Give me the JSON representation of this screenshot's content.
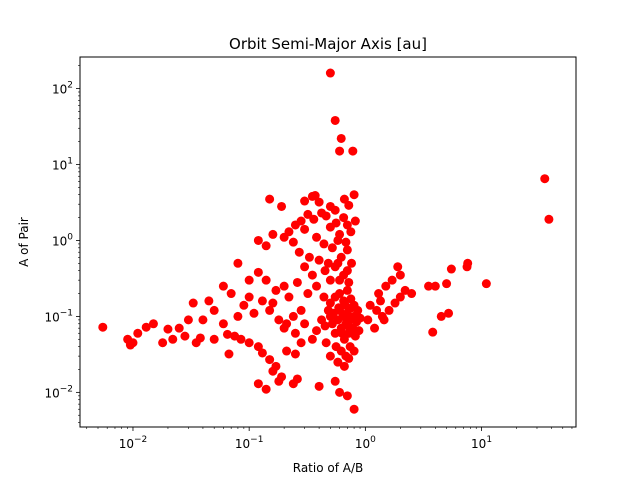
{
  "chart_data": {
    "type": "scatter",
    "title": "Orbit Semi-Major Axis [au]",
    "xlabel": "Ratio of A/B",
    "ylabel": "A of Pair",
    "xscale": "log",
    "yscale": "log",
    "xlim": [
      0.0035,
      65
    ],
    "ylim": [
      0.0035,
      260
    ],
    "grid": false,
    "marker_color": "#ff0000",
    "xticks": [
      {
        "value": 0.01,
        "base": "10",
        "exp": "−2"
      },
      {
        "value": 0.1,
        "base": "10",
        "exp": "−1"
      },
      {
        "value": 1,
        "base": "10",
        "exp": "0"
      },
      {
        "value": 10,
        "base": "10",
        "exp": "1"
      }
    ],
    "yticks": [
      {
        "value": 0.01,
        "base": "10",
        "exp": "−2"
      },
      {
        "value": 0.1,
        "base": "10",
        "exp": "−1"
      },
      {
        "value": 1,
        "base": "10",
        "exp": "0"
      },
      {
        "value": 10,
        "base": "10",
        "exp": "1"
      },
      {
        "value": 100,
        "base": "10",
        "exp": "2"
      }
    ],
    "series": [
      {
        "points": [
          [
            0.5,
            160
          ],
          [
            0.55,
            38
          ],
          [
            0.62,
            22
          ],
          [
            0.6,
            15
          ],
          [
            0.78,
            15
          ],
          [
            35,
            6.5
          ],
          [
            38,
            1.9
          ],
          [
            0.15,
            3.5
          ],
          [
            0.19,
            2.8
          ],
          [
            0.3,
            3.3
          ],
          [
            0.35,
            3.8
          ],
          [
            0.37,
            3.9
          ],
          [
            0.4,
            3.2
          ],
          [
            0.5,
            2.8
          ],
          [
            0.55,
            2.5
          ],
          [
            0.8,
            4.0
          ],
          [
            0.66,
            3.5
          ],
          [
            0.72,
            2.9
          ],
          [
            0.12,
            1.0
          ],
          [
            0.14,
            0.85
          ],
          [
            0.16,
            1.2
          ],
          [
            0.2,
            1.1
          ],
          [
            0.22,
            1.3
          ],
          [
            0.25,
            1.6
          ],
          [
            0.28,
            1.8
          ],
          [
            0.3,
            1.4
          ],
          [
            0.32,
            2.2
          ],
          [
            0.36,
            1.9
          ],
          [
            0.42,
            2.3
          ],
          [
            0.46,
            2.1
          ],
          [
            0.5,
            1.5
          ],
          [
            0.56,
            1.7
          ],
          [
            0.6,
            1.2
          ],
          [
            0.65,
            2.0
          ],
          [
            0.7,
            1.6
          ],
          [
            0.75,
            1.3
          ],
          [
            0.82,
            1.8
          ],
          [
            0.38,
            1.1
          ],
          [
            0.44,
            0.9
          ],
          [
            0.52,
            0.8
          ],
          [
            0.58,
            1.0
          ],
          [
            0.68,
            0.95
          ],
          [
            0.24,
            0.95
          ],
          [
            0.27,
            0.7
          ],
          [
            0.33,
            0.6
          ],
          [
            0.4,
            0.55
          ],
          [
            0.48,
            0.5
          ],
          [
            0.55,
            0.45
          ],
          [
            0.62,
            0.6
          ],
          [
            0.7,
            0.75
          ],
          [
            0.76,
            0.5
          ],
          [
            0.45,
            0.4
          ],
          [
            0.35,
            0.35
          ],
          [
            0.3,
            0.45
          ],
          [
            0.08,
            0.5
          ],
          [
            0.1,
            0.3
          ],
          [
            0.12,
            0.38
          ],
          [
            0.14,
            0.3
          ],
          [
            0.17,
            0.22
          ],
          [
            0.2,
            0.25
          ],
          [
            0.22,
            0.18
          ],
          [
            0.26,
            0.28
          ],
          [
            0.32,
            0.2
          ],
          [
            0.38,
            0.25
          ],
          [
            0.44,
            0.18
          ],
          [
            0.5,
            0.3
          ],
          [
            0.06,
            0.25
          ],
          [
            0.07,
            0.2
          ],
          [
            0.09,
            0.14
          ],
          [
            0.1,
            0.18
          ],
          [
            0.13,
            0.16
          ],
          [
            0.16,
            0.15
          ],
          [
            0.05,
            0.12
          ],
          [
            0.06,
            0.08
          ],
          [
            0.08,
            0.1
          ],
          [
            0.11,
            0.11
          ],
          [
            0.15,
            0.12
          ],
          [
            0.18,
            0.09
          ],
          [
            0.21,
            0.08
          ],
          [
            0.24,
            0.1
          ],
          [
            0.28,
            0.12
          ],
          [
            0.033,
            0.15
          ],
          [
            0.04,
            0.09
          ],
          [
            0.045,
            0.16
          ],
          [
            0.03,
            0.09
          ],
          [
            0.025,
            0.07
          ],
          [
            0.02,
            0.068
          ],
          [
            0.015,
            0.08
          ],
          [
            0.013,
            0.072
          ],
          [
            0.011,
            0.06
          ],
          [
            0.009,
            0.05
          ],
          [
            0.01,
            0.045
          ],
          [
            0.0055,
            0.072
          ],
          [
            0.0095,
            0.042
          ],
          [
            0.018,
            0.045
          ],
          [
            0.022,
            0.05
          ],
          [
            0.028,
            0.055
          ],
          [
            0.035,
            0.045
          ],
          [
            0.038,
            0.052
          ],
          [
            0.05,
            0.05
          ],
          [
            0.065,
            0.058
          ],
          [
            0.075,
            0.055
          ],
          [
            0.085,
            0.05
          ],
          [
            0.1,
            0.045
          ],
          [
            0.12,
            0.04
          ],
          [
            0.067,
            0.032
          ],
          [
            0.13,
            0.033
          ],
          [
            0.15,
            0.027
          ],
          [
            0.17,
            0.022
          ],
          [
            0.16,
            0.019
          ],
          [
            0.19,
            0.016
          ],
          [
            0.21,
            0.035
          ],
          [
            0.25,
            0.032
          ],
          [
            0.28,
            0.045
          ],
          [
            0.12,
            0.013
          ],
          [
            0.14,
            0.011
          ],
          [
            0.18,
            0.014
          ],
          [
            0.24,
            0.013
          ],
          [
            0.26,
            0.015
          ],
          [
            0.7,
            0.009
          ],
          [
            0.8,
            0.006
          ],
          [
            0.6,
            0.01
          ],
          [
            0.55,
            0.014
          ],
          [
            0.4,
            0.012
          ],
          [
            0.2,
            0.07
          ],
          [
            0.25,
            0.06
          ],
          [
            0.3,
            0.08
          ],
          [
            0.35,
            0.05
          ],
          [
            0.38,
            0.065
          ],
          [
            0.42,
            0.09
          ],
          [
            0.45,
            0.075
          ],
          [
            0.48,
            0.12
          ],
          [
            0.5,
            0.1
          ],
          [
            0.52,
            0.08
          ],
          [
            0.55,
            0.06
          ],
          [
            0.58,
            0.09
          ],
          [
            0.6,
            0.12
          ],
          [
            0.62,
            0.07
          ],
          [
            0.64,
            0.1
          ],
          [
            0.66,
            0.05
          ],
          [
            0.68,
            0.08
          ],
          [
            0.7,
            0.11
          ],
          [
            0.72,
            0.06
          ],
          [
            0.74,
            0.09
          ],
          [
            0.76,
            0.13
          ],
          [
            0.78,
            0.07
          ],
          [
            0.8,
            0.1
          ],
          [
            0.82,
            0.055
          ],
          [
            0.84,
            0.085
          ],
          [
            0.86,
            0.12
          ],
          [
            0.88,
            0.065
          ],
          [
            0.9,
            0.095
          ],
          [
            0.5,
            0.15
          ],
          [
            0.55,
            0.18
          ],
          [
            0.6,
            0.2
          ],
          [
            0.65,
            0.16
          ],
          [
            0.7,
            0.22
          ],
          [
            0.75,
            0.17
          ],
          [
            0.8,
            0.14
          ],
          [
            0.56,
            0.04
          ],
          [
            0.62,
            0.035
          ],
          [
            0.68,
            0.03
          ],
          [
            0.74,
            0.04
          ],
          [
            0.8,
            0.035
          ],
          [
            0.5,
            0.03
          ],
          [
            0.58,
            0.025
          ],
          [
            0.66,
            0.022
          ],
          [
            0.72,
            0.028
          ],
          [
            0.46,
            0.045
          ],
          [
            0.63,
            0.06
          ],
          [
            0.67,
            0.14
          ],
          [
            0.71,
            0.075
          ],
          [
            0.59,
            0.13
          ],
          [
            0.53,
            0.11
          ],
          [
            0.6,
            0.3
          ],
          [
            0.65,
            0.35
          ],
          [
            0.7,
            0.4
          ],
          [
            0.58,
            0.5
          ],
          [
            0.72,
            0.28
          ],
          [
            1.2,
            0.07
          ],
          [
            1.4,
            0.1
          ],
          [
            1.6,
            0.12
          ],
          [
            1.8,
            0.15
          ],
          [
            2.0,
            0.18
          ],
          [
            1.3,
            0.2
          ],
          [
            1.5,
            0.25
          ],
          [
            1.7,
            0.3
          ],
          [
            2.0,
            0.35
          ],
          [
            2.2,
            0.22
          ],
          [
            2.5,
            0.2
          ],
          [
            1.9,
            0.45
          ],
          [
            1.25,
            0.12
          ],
          [
            1.35,
            0.16
          ],
          [
            1.45,
            0.09
          ],
          [
            1.1,
            0.14
          ],
          [
            1.05,
            0.09
          ],
          [
            3.5,
            0.25
          ],
          [
            4.0,
            0.25
          ],
          [
            3.8,
            0.062
          ],
          [
            5.0,
            0.27
          ],
          [
            5.5,
            0.42
          ],
          [
            7.5,
            0.45
          ],
          [
            7.6,
            0.5
          ],
          [
            11.0,
            0.27
          ],
          [
            5.2,
            0.11
          ],
          [
            4.5,
            0.1
          ]
        ]
      }
    ]
  }
}
